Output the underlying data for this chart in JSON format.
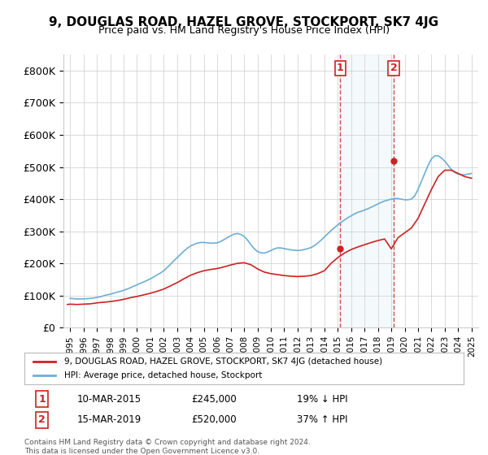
{
  "title": "9, DOUGLAS ROAD, HAZEL GROVE, STOCKPORT, SK7 4JG",
  "subtitle": "Price paid vs. HM Land Registry's House Price Index (HPI)",
  "legend_line1": "9, DOUGLAS ROAD, HAZEL GROVE, STOCKPORT, SK7 4JG (detached house)",
  "legend_line2": "HPI: Average price, detached house, Stockport",
  "annotation1_label": "1",
  "annotation1_date": "10-MAR-2015",
  "annotation1_price": "£245,000",
  "annotation1_pct": "19% ↓ HPI",
  "annotation2_label": "2",
  "annotation2_date": "15-MAR-2019",
  "annotation2_price": "£520,000",
  "annotation2_pct": "37% ↑ HPI",
  "footer": "Contains HM Land Registry data © Crown copyright and database right 2024.\nThis data is licensed under the Open Government Licence v3.0.",
  "hpi_color": "#6daed6",
  "price_color": "#cc2222",
  "annotation_vline_color": "#cc2222",
  "background_color": "#ffffff",
  "grid_color": "#cccccc",
  "ylim": [
    0,
    850000
  ],
  "yticks": [
    0,
    100000,
    200000,
    300000,
    400000,
    500000,
    600000,
    700000,
    800000
  ],
  "ytick_labels": [
    "£0",
    "£100K",
    "£200K",
    "£300K",
    "£400K",
    "£500K",
    "£600K",
    "£700K",
    "£800K"
  ],
  "xlim_start": 1994.5,
  "xlim_end": 2025.5,
  "xtick_years": [
    1995,
    1996,
    1997,
    1998,
    1999,
    2000,
    2001,
    2002,
    2003,
    2004,
    2005,
    2006,
    2007,
    2008,
    2009,
    2010,
    2011,
    2012,
    2013,
    2014,
    2015,
    2016,
    2017,
    2018,
    2019,
    2020,
    2021,
    2022,
    2023,
    2024,
    2025
  ],
  "sale1_x": 2015.19,
  "sale1_y": 245000,
  "sale2_x": 2019.2,
  "sale2_y": 520000,
  "hpi_x": [
    1995.0,
    1995.25,
    1995.5,
    1995.75,
    1996.0,
    1996.25,
    1996.5,
    1996.75,
    1997.0,
    1997.25,
    1997.5,
    1997.75,
    1998.0,
    1998.25,
    1998.5,
    1998.75,
    1999.0,
    1999.25,
    1999.5,
    1999.75,
    2000.0,
    2000.25,
    2000.5,
    2000.75,
    2001.0,
    2001.25,
    2001.5,
    2001.75,
    2002.0,
    2002.25,
    2002.5,
    2002.75,
    2003.0,
    2003.25,
    2003.5,
    2003.75,
    2004.0,
    2004.25,
    2004.5,
    2004.75,
    2005.0,
    2005.25,
    2005.5,
    2005.75,
    2006.0,
    2006.25,
    2006.5,
    2006.75,
    2007.0,
    2007.25,
    2007.5,
    2007.75,
    2008.0,
    2008.25,
    2008.5,
    2008.75,
    2009.0,
    2009.25,
    2009.5,
    2009.75,
    2010.0,
    2010.25,
    2010.5,
    2010.75,
    2011.0,
    2011.25,
    2011.5,
    2011.75,
    2012.0,
    2012.25,
    2012.5,
    2012.75,
    2013.0,
    2013.25,
    2013.5,
    2013.75,
    2014.0,
    2014.25,
    2014.5,
    2014.75,
    2015.0,
    2015.25,
    2015.5,
    2015.75,
    2016.0,
    2016.25,
    2016.5,
    2016.75,
    2017.0,
    2017.25,
    2017.5,
    2017.75,
    2018.0,
    2018.25,
    2018.5,
    2018.75,
    2019.0,
    2019.25,
    2019.5,
    2019.75,
    2020.0,
    2020.25,
    2020.5,
    2020.75,
    2021.0,
    2021.25,
    2021.5,
    2021.75,
    2022.0,
    2022.25,
    2022.5,
    2022.75,
    2023.0,
    2023.25,
    2023.5,
    2023.75,
    2024.0,
    2024.25,
    2024.5,
    2024.75,
    2025.0
  ],
  "hpi_y": [
    91000,
    90000,
    89500,
    89000,
    89500,
    90000,
    91000,
    92000,
    94000,
    96000,
    99000,
    102000,
    104000,
    107000,
    110000,
    113000,
    116000,
    120000,
    124000,
    129000,
    133000,
    138000,
    142000,
    147000,
    152000,
    158000,
    164000,
    170000,
    177000,
    187000,
    197000,
    208000,
    218000,
    228000,
    238000,
    247000,
    254000,
    259000,
    263000,
    265000,
    265000,
    264000,
    263000,
    263000,
    264000,
    268000,
    274000,
    280000,
    286000,
    291000,
    293000,
    290000,
    284000,
    273000,
    259000,
    246000,
    237000,
    233000,
    232000,
    235000,
    240000,
    245000,
    248000,
    248000,
    246000,
    244000,
    242000,
    241000,
    240000,
    241000,
    243000,
    246000,
    249000,
    255000,
    263000,
    272000,
    282000,
    292000,
    302000,
    311000,
    320000,
    328000,
    335000,
    342000,
    348000,
    354000,
    359000,
    362000,
    366000,
    370000,
    375000,
    380000,
    385000,
    390000,
    394000,
    397000,
    400000,
    402000,
    402000,
    400000,
    398000,
    398000,
    400000,
    410000,
    430000,
    455000,
    480000,
    505000,
    525000,
    535000,
    535000,
    528000,
    518000,
    505000,
    492000,
    483000,
    478000,
    476000,
    476000,
    478000,
    480000
  ],
  "price_x": [
    1994.8,
    1995.0,
    1995.5,
    1996.0,
    1996.5,
    1997.0,
    1997.5,
    1998.0,
    1998.5,
    1999.0,
    1999.5,
    2000.0,
    2000.5,
    2001.0,
    2001.5,
    2002.0,
    2002.5,
    2003.0,
    2003.5,
    2004.0,
    2004.5,
    2005.0,
    2005.5,
    2006.0,
    2006.5,
    2007.0,
    2007.5,
    2008.0,
    2008.5,
    2009.0,
    2009.5,
    2010.0,
    2010.5,
    2011.0,
    2011.5,
    2012.0,
    2012.5,
    2013.0,
    2013.5,
    2014.0,
    2014.5,
    2015.0,
    2015.5,
    2016.0,
    2016.5,
    2017.0,
    2017.5,
    2018.0,
    2018.5,
    2019.0,
    2019.5,
    2020.0,
    2020.5,
    2021.0,
    2021.5,
    2022.0,
    2022.5,
    2023.0,
    2023.5,
    2024.0,
    2024.5,
    2025.0
  ],
  "price_y": [
    72000,
    73000,
    72000,
    73000,
    74000,
    77000,
    79000,
    81000,
    84000,
    88000,
    93000,
    97000,
    102000,
    107000,
    113000,
    120000,
    130000,
    140000,
    152000,
    163000,
    171000,
    177000,
    181000,
    184000,
    189000,
    195000,
    200000,
    202000,
    196000,
    183000,
    173000,
    168000,
    165000,
    162000,
    160000,
    159000,
    160000,
    162000,
    168000,
    177000,
    200000,
    218000,
    232000,
    243000,
    251000,
    258000,
    265000,
    271000,
    276000,
    245000,
    280000,
    295000,
    310000,
    340000,
    385000,
    430000,
    470000,
    490000,
    490000,
    480000,
    470000,
    465000
  ]
}
